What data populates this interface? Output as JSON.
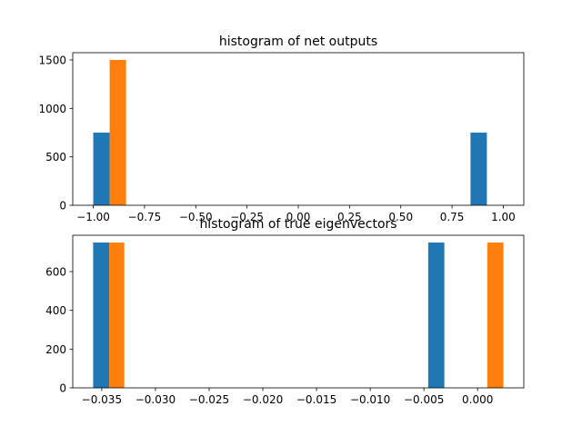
{
  "chart_data": [
    {
      "type": "bar",
      "title": "histogram of net outputs",
      "xlabel": "",
      "ylabel": "",
      "xlim": [
        -1.1,
        1.1
      ],
      "ylim": [
        0,
        1575
      ],
      "xticks": [
        -1.0,
        -0.75,
        -0.5,
        -0.25,
        0.0,
        0.25,
        0.5,
        0.75,
        1.0
      ],
      "xtick_labels": [
        "−1.00",
        "−0.75",
        "−0.50",
        "−0.25",
        "0.00",
        "0.25",
        "0.50",
        "0.75",
        "1.00"
      ],
      "yticks": [
        0,
        500,
        1000,
        1500
      ],
      "ytick_labels": [
        "0",
        "500",
        "1000",
        "1500"
      ],
      "grid": false,
      "bars": [
        {
          "series": 0,
          "x0": -1.0,
          "x1": -0.92,
          "value": 750,
          "color": "#1f77b4"
        },
        {
          "series": 0,
          "x0": 0.84,
          "x1": 0.92,
          "value": 750,
          "color": "#1f77b4"
        },
        {
          "series": 1,
          "x0": -0.92,
          "x1": -0.84,
          "value": 1500,
          "color": "#ff7f0e"
        }
      ]
    },
    {
      "type": "bar",
      "title": "histogram of true eigenvectors",
      "xlabel": "",
      "ylabel": "",
      "xlim": [
        -0.0377,
        0.0043
      ],
      "ylim": [
        0,
        787.5
      ],
      "xticks": [
        -0.035,
        -0.03,
        -0.025,
        -0.02,
        -0.015,
        -0.01,
        -0.005,
        0.0
      ],
      "xtick_labels": [
        "−0.035",
        "−0.030",
        "−0.025",
        "−0.020",
        "−0.015",
        "−0.010",
        "−0.005",
        "0.000"
      ],
      "yticks": [
        0,
        200,
        400,
        600
      ],
      "ytick_labels": [
        "0",
        "200",
        "400",
        "600"
      ],
      "grid": false,
      "bars": [
        {
          "series": 0,
          "x0": -0.0358,
          "x1": -0.0343,
          "value": 750,
          "color": "#1f77b4"
        },
        {
          "series": 0,
          "x0": -0.0046,
          "x1": -0.0031,
          "value": 750,
          "color": "#1f77b4"
        },
        {
          "series": 1,
          "x0": -0.0343,
          "x1": -0.0329,
          "value": 750,
          "color": "#ff7f0e"
        },
        {
          "series": 1,
          "x0": 0.0009,
          "x1": 0.0024,
          "value": 750,
          "color": "#ff7f0e"
        }
      ]
    }
  ]
}
